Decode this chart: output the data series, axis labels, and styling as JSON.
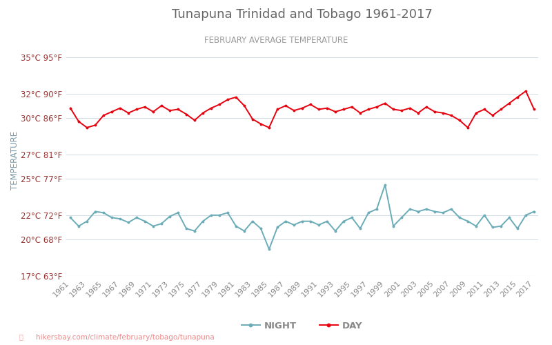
{
  "title": "Tunapuna Trinidad and Tobago 1961-2017",
  "subtitle": "FEBRUARY AVERAGE TEMPERATURE",
  "ylabel": "TEMPERATURE",
  "footer": "hikersbay.com/climate/february/tobago/tunapuna",
  "legend_night": "NIGHT",
  "legend_day": "DAY",
  "years": [
    1961,
    1962,
    1963,
    1964,
    1965,
    1966,
    1967,
    1968,
    1969,
    1970,
    1971,
    1972,
    1973,
    1974,
    1975,
    1976,
    1977,
    1978,
    1979,
    1980,
    1981,
    1982,
    1983,
    1984,
    1985,
    1986,
    1987,
    1988,
    1989,
    1990,
    1991,
    1992,
    1993,
    1994,
    1995,
    1996,
    1997,
    1998,
    1999,
    2000,
    2001,
    2002,
    2003,
    2004,
    2005,
    2006,
    2007,
    2008,
    2009,
    2010,
    2011,
    2012,
    2013,
    2014,
    2015,
    2016,
    2017
  ],
  "day_temps": [
    30.8,
    29.7,
    29.2,
    29.4,
    30.2,
    30.5,
    30.8,
    30.4,
    30.7,
    30.9,
    30.5,
    31.0,
    30.6,
    30.7,
    30.3,
    29.8,
    30.4,
    30.8,
    31.1,
    31.5,
    31.7,
    31.0,
    29.9,
    29.5,
    29.2,
    30.7,
    31.0,
    30.6,
    30.8,
    31.1,
    30.7,
    30.8,
    30.5,
    30.7,
    30.9,
    30.4,
    30.7,
    30.9,
    31.2,
    30.7,
    30.6,
    30.8,
    30.4,
    30.9,
    30.5,
    30.4,
    30.2,
    29.8,
    29.2,
    30.4,
    30.7,
    30.2,
    30.7,
    31.2,
    31.7,
    32.2,
    30.7
  ],
  "night_temps": [
    21.8,
    21.1,
    21.5,
    22.3,
    22.2,
    21.8,
    21.7,
    21.4,
    21.8,
    21.5,
    21.1,
    21.3,
    21.9,
    22.2,
    20.9,
    20.7,
    21.5,
    22.0,
    22.0,
    22.2,
    21.1,
    20.7,
    21.5,
    20.9,
    19.2,
    21.0,
    21.5,
    21.2,
    21.5,
    21.5,
    21.2,
    21.5,
    20.7,
    21.5,
    21.8,
    20.9,
    22.2,
    22.5,
    24.5,
    21.1,
    21.8,
    22.5,
    22.3,
    22.5,
    22.3,
    22.2,
    22.5,
    21.8,
    21.5,
    21.1,
    22.0,
    21.0,
    21.1,
    21.8,
    20.9,
    22.0,
    22.3
  ],
  "ylim_min": 17,
  "ylim_max": 36,
  "yticks_c": [
    17,
    20,
    22,
    25,
    27,
    30,
    32,
    35
  ],
  "yticks_f": [
    63,
    68,
    72,
    77,
    81,
    86,
    90,
    95
  ],
  "day_color": "#e8000d",
  "night_color": "#6aacb8",
  "grid_color": "#d5dde5",
  "title_color": "#666666",
  "subtitle_color": "#999999",
  "label_color": "#993333",
  "ylabel_color": "#7799aa",
  "bg_color": "#ffffff",
  "marker_size": 2.8,
  "line_width": 1.4
}
